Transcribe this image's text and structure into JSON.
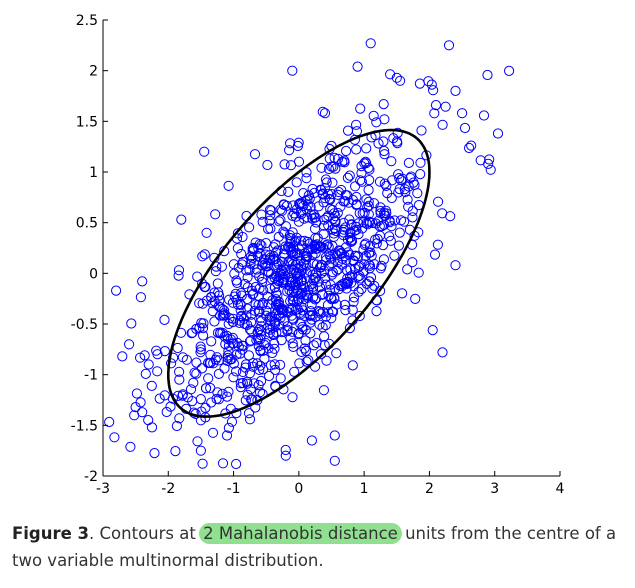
{
  "chart_data": {
    "type": "scatter",
    "title": "",
    "xlabel": "",
    "ylabel": "",
    "xlim": [
      -3,
      4
    ],
    "ylim": [
      -2,
      2.5
    ],
    "xticks": [
      "-3",
      "-2",
      "-1",
      "0",
      "1",
      "2",
      "3",
      "4"
    ],
    "yticks": [
      "-2",
      "-1.5",
      "-1",
      "-0.5",
      "0",
      "0.5",
      "1",
      "1.5",
      "2",
      "2.5"
    ],
    "grid": false,
    "point_color": "#0000ff",
    "ellipse_color": "#000000",
    "distribution": {
      "n": 1000,
      "mean": [
        0,
        0
      ],
      "covariance": [
        [
          1,
          0.5
        ],
        [
          0.5,
          0.5
        ]
      ]
    },
    "ellipse": {
      "mahalanobis_distance": 2,
      "center": [
        0,
        0
      ]
    },
    "outlier_points": [
      [
        1.1,
        2.27
      ],
      [
        2.3,
        2.25
      ],
      [
        -0.1,
        2.0
      ],
      [
        0.9,
        2.04
      ],
      [
        1.5,
        1.93
      ],
      [
        1.55,
        1.9
      ],
      [
        2.4,
        1.8
      ],
      [
        0.4,
        1.58
      ],
      [
        1.3,
        1.67
      ],
      [
        2.1,
        1.66
      ],
      [
        2.5,
        1.58
      ],
      [
        3.05,
        1.38
      ],
      [
        2.9,
        1.08
      ],
      [
        -2.8,
        -0.17
      ],
      [
        -2.4,
        -0.08
      ],
      [
        -2.6,
        -0.7
      ],
      [
        -2.3,
        -0.9
      ],
      [
        -2.5,
        -1.32
      ],
      [
        -2.25,
        -1.52
      ],
      [
        -1.5,
        -1.45
      ],
      [
        -1.5,
        -1.75
      ],
      [
        -1.1,
        -1.6
      ],
      [
        -0.2,
        -1.8
      ],
      [
        0.55,
        -1.85
      ],
      [
        0.55,
        -1.6
      ],
      [
        0.2,
        -1.65
      ],
      [
        2.2,
        -0.78
      ],
      [
        2.05,
        -0.56
      ],
      [
        2.4,
        0.08
      ],
      [
        -1.45,
        1.2
      ],
      [
        -1.8,
        0.53
      ]
    ]
  },
  "caption": {
    "label": "Figure 3",
    "text_before": ".   Contours at ",
    "highlight": "2 Mahalanobis distance",
    "text_after": " units from the centre of a two variable multinormal distribution.",
    "highlight_color": "#8fe08f"
  }
}
